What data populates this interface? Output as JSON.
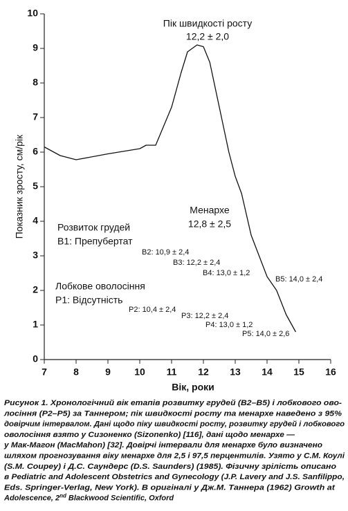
{
  "chart_data": {
    "type": "line",
    "x_label": "Вік, роки",
    "y_label": "Показник зросту, см/рік",
    "xlim": [
      7,
      16
    ],
    "xticks": [
      7,
      8,
      9,
      10,
      11,
      12,
      13,
      14,
      15,
      16
    ],
    "ylim": [
      0,
      10
    ],
    "yticks": [
      0,
      1,
      2,
      3,
      4,
      5,
      6,
      7,
      8,
      9,
      10
    ],
    "series": [
      {
        "color": "#111111",
        "x": [
          7,
          7.5,
          8,
          9,
          10,
          10.2,
          10.5,
          11,
          11.3,
          11.5,
          11.8,
          12,
          12.2,
          12.5,
          12.8,
          13,
          13.2,
          13.5,
          14,
          14.3,
          14.6,
          14.9
        ],
        "values": [
          6.15,
          5.9,
          5.78,
          5.95,
          6.1,
          6.2,
          6.2,
          7.3,
          8.3,
          8.9,
          9.1,
          9.05,
          8.6,
          7.3,
          6.0,
          5.3,
          4.8,
          3.6,
          2.4,
          2.0,
          1.3,
          0.8
        ]
      }
    ],
    "annotations": [
      "Пік швидкості росту",
      "12,2 ± 2,0",
      "Менархе",
      "12,8 ± 2,5",
      "Розвиток грудей",
      "B1: Препубертат",
      "B2: 10,9 ± 2,4",
      "B3: 12,2 ± 2,4",
      "B4: 13,0 ± 1,2",
      "B5: 14,0 ± 2,4",
      "Лобкове оволосіння",
      "P1: Відсутність",
      "P2: 10,4 ± 2,4",
      "P3: 12,2 ± 2,4",
      "P4: 13,0 ± 1,2",
      "P5: 14,0 ± 2,6"
    ]
  },
  "caption": {
    "lines": [
      "Рисунок 1. Хронологічний вік етапів розвитку грудей (B2–B5) і лобкового ово-",
      "лосіння (P2–P5) за Таннером; пік швидкості росту та менархе наведено з 95%",
      "довірчим інтервалом. Дані щодо піку швидкості росту, розвитку грудей і лобкового",
      "оволосіння взято у Сизоненко (Sizonenko) [116], дані щодо менархе —",
      "у Мак-Магон (MacMahon) [32]. Довірчі інтервали для менархе було визначено",
      "шляхом прогнозування віку менархе для 2,5 і 97,5 перцентилів. Узято у С.М. Коулі",
      "(S.M. Coupey) і Д.С. Саундерс (D.S. Saunders) (1985). Фізичну зрілість описано",
      "в Pediatric and Adolescent Obstetrics and Gynecology (J.P. Lavery and J.S. Sanfilippo,",
      "Eds. Springer-Verlag, New York). В оригіналі у Дж.М. Таннера (1962) Growth at"
    ],
    "last_line": {
      "before": "Adolescence, 2",
      "sup": "nd",
      "after": " Blackwood Scientific, Oxford"
    }
  }
}
